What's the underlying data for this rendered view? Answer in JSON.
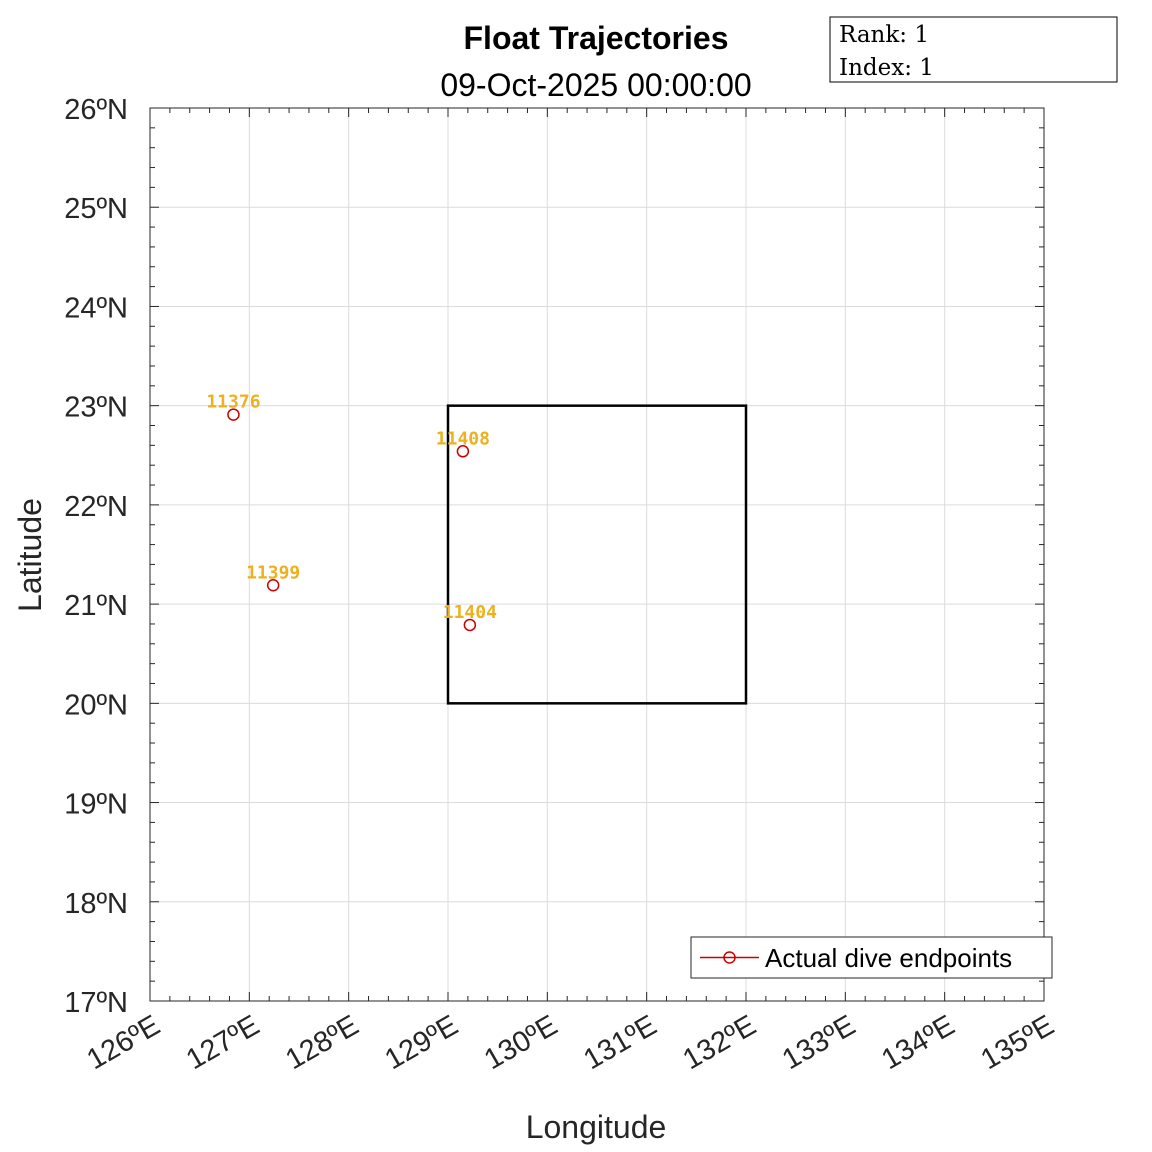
{
  "title": "Float Trajectories",
  "subtitle": "09-Oct-2025 00:00:00",
  "info_box": {
    "rank": "Rank: 1",
    "index": "Index: 1"
  },
  "chart_data": {
    "type": "scatter",
    "xlabel": "Longitude",
    "ylabel": "Latitude",
    "xlim": [
      126,
      135
    ],
    "ylim": [
      17,
      26
    ],
    "grid": true,
    "x_ticks": [
      126,
      127,
      128,
      129,
      130,
      131,
      132,
      133,
      134,
      135
    ],
    "x_tick_labels": [
      "126ºE",
      "127ºE",
      "128ºE",
      "129ºE",
      "130ºE",
      "131ºE",
      "132ºE",
      "133ºE",
      "134ºE",
      "135ºE"
    ],
    "y_ticks": [
      17,
      18,
      19,
      20,
      21,
      22,
      23,
      24,
      25,
      26
    ],
    "y_tick_labels": [
      "17ºN",
      "18ºN",
      "19ºN",
      "20ºN",
      "21ºN",
      "22ºN",
      "23ºN",
      "24ºN",
      "25ºN",
      "26ºN"
    ],
    "region_box": {
      "lon_min": 129,
      "lon_max": 132,
      "lat_min": 20,
      "lat_max": 23
    },
    "floats": [
      {
        "id": "11376",
        "lon": 126.84,
        "lat": 22.91
      },
      {
        "id": "11408",
        "lon": 129.15,
        "lat": 22.54
      },
      {
        "id": "11399",
        "lon": 127.24,
        "lat": 21.19
      },
      {
        "id": "11404",
        "lon": 129.22,
        "lat": 20.79
      }
    ],
    "legend": {
      "label": "Actual dive endpoints",
      "position": "bottom-right"
    },
    "colors": {
      "marker": "#CC0000",
      "label": "#EDB120",
      "box": "#000000",
      "grid": "#DCDCDC"
    }
  }
}
